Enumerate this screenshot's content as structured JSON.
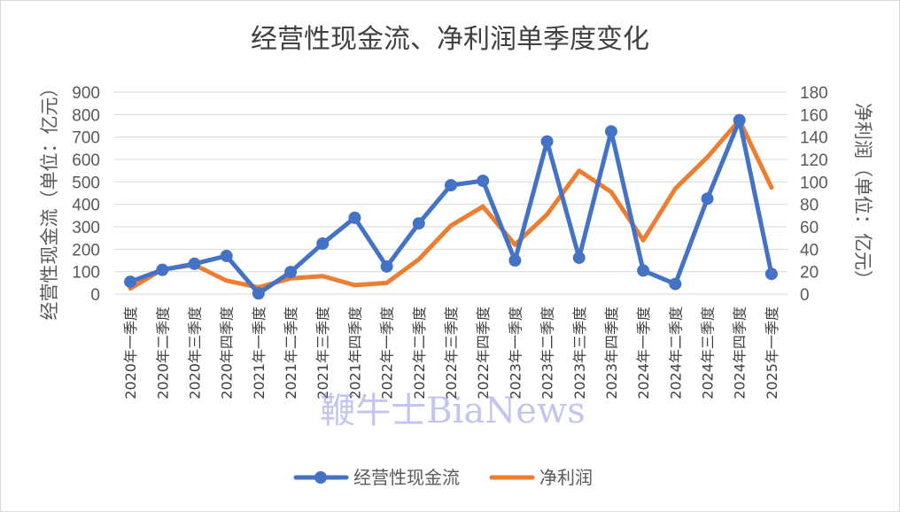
{
  "chart_data": {
    "type": "line",
    "title": "经营性现金流、净利润单季度变化",
    "ylabel": "经营性现金流（单位：亿元）",
    "y2label": "净利润（单位：亿元）",
    "ylim": [
      0,
      900
    ],
    "y2lim": [
      0,
      180
    ],
    "yticks": [
      "0",
      "100",
      "200",
      "300",
      "400",
      "500",
      "600",
      "700",
      "800",
      "900"
    ],
    "y2ticks": [
      "0",
      "20",
      "40",
      "60",
      "80",
      "100",
      "120",
      "140",
      "160",
      "180"
    ],
    "grid": true,
    "legend_position": "bottom",
    "categories": [
      "2020年一季度",
      "2020年二季度",
      "2020年三季度",
      "2020年四季度",
      "2021年一季度",
      "2021年二季度",
      "2021年三季度",
      "2021年四季度",
      "2022年一季度",
      "2022年二季度",
      "2022年三季度",
      "2022年四季度",
      "2023年一季度",
      "2023年二季度",
      "2023年三季度",
      "2023年四季度",
      "2024年一季度",
      "2024年二季度",
      "2024年三季度",
      "2024年四季度",
      "2025年一季度"
    ],
    "series": [
      {
        "name": "经营性现金流",
        "axis": "left",
        "color": "#4472c4",
        "marker": "circle",
        "values": [
          55,
          108,
          135,
          170,
          3,
          98,
          225,
          340,
          123,
          315,
          485,
          505,
          150,
          680,
          162,
          725,
          105,
          45,
          425,
          775,
          90
        ]
      },
      {
        "name": "净利润",
        "axis": "right",
        "color": "#ed7d31",
        "marker": "none",
        "values": [
          5,
          22,
          26,
          12,
          6,
          14,
          16,
          8,
          10,
          31,
          61,
          78,
          44,
          71,
          110,
          91,
          48,
          94,
          122,
          155,
          95
        ]
      }
    ]
  },
  "watermark": "鞭牛士BiaNews"
}
